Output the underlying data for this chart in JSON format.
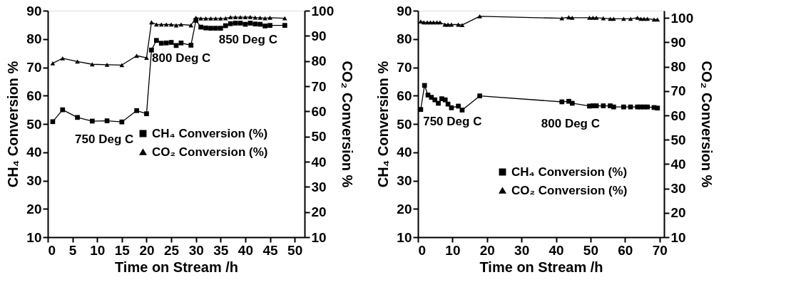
{
  "chart_data": [
    {
      "type": "line",
      "xlabel": "Time on Stream /h",
      "ylabel": "CH₄ Conversion %",
      "y2label": "CO₂ Conversion %",
      "xlim": [
        0,
        52
      ],
      "xticks": [
        0,
        5,
        10,
        15,
        20,
        25,
        30,
        35,
        40,
        45,
        50
      ],
      "ylim": [
        10,
        90
      ],
      "yticks": [
        10,
        20,
        30,
        40,
        50,
        60,
        70,
        80,
        90
      ],
      "y2lim": [
        10,
        100
      ],
      "y2ticks": [
        10,
        20,
        30,
        40,
        50,
        60,
        70,
        80,
        90,
        100
      ],
      "grid": false,
      "legend": "right",
      "line_style": "solid",
      "series": [
        {
          "name": "CH₄ Conversion (%)",
          "color": "#000000",
          "marker": "square",
          "x": [
            1,
            3,
            6,
            9,
            12,
            15,
            18,
            20,
            21,
            22,
            23,
            24,
            25,
            26,
            27,
            29,
            30,
            31,
            32,
            33,
            34,
            35,
            36,
            37,
            38,
            39,
            40,
            41,
            42,
            43,
            44,
            45,
            48
          ],
          "values": [
            50.8,
            55.0,
            52.3,
            51.0,
            51.1,
            50.7,
            54.7,
            53.6,
            76.1,
            79.5,
            78.5,
            78.6,
            78.8,
            77.7,
            78.6,
            77.8,
            86.6,
            84.2,
            83.9,
            83.8,
            83.8,
            83.8,
            84.7,
            85.4,
            85.6,
            85.6,
            85.2,
            85.6,
            85.3,
            85.2,
            84.6,
            84.8,
            84.8
          ]
        },
        {
          "name": "CO₂ Conversion (%)",
          "color": "#000000",
          "marker": "triangle",
          "axis": "y2",
          "x": [
            1,
            3,
            6,
            9,
            12,
            15,
            18,
            20,
            21,
            22,
            23,
            24,
            25,
            26,
            27,
            29,
            30,
            31,
            32,
            33,
            34,
            35,
            36,
            37,
            38,
            39,
            40,
            41,
            42,
            43,
            44,
            45,
            48
          ],
          "values": [
            79.1,
            81.1,
            79.8,
            78.7,
            78.5,
            78.4,
            82.1,
            81.3,
            95.4,
            94.5,
            94.5,
            94.5,
            94.5,
            94.2,
            94.5,
            94.2,
            97.2,
            96.9,
            96.9,
            96.9,
            96.9,
            96.9,
            97.0,
            97.4,
            97.4,
            97.4,
            97.4,
            97.5,
            97.3,
            97.2,
            97.0,
            97.2,
            97.0
          ]
        }
      ],
      "annotations": [
        "750 Deg C",
        "800 Deg C",
        "850 Deg C"
      ]
    },
    {
      "type": "line",
      "xlabel": "Time on Stream /h",
      "ylabel": "CH₄ Conversion %",
      "y2label": "CO₂ Conversion %",
      "xlim": [
        0,
        71.3
      ],
      "xticks": [
        0,
        10,
        20,
        30,
        40,
        50,
        60,
        70
      ],
      "ylim": [
        10,
        90
      ],
      "yticks": [
        10,
        20,
        30,
        40,
        50,
        60,
        70,
        80,
        90
      ],
      "y2lim": [
        10,
        103
      ],
      "y2ticks": [
        10,
        20,
        30,
        40,
        50,
        60,
        70,
        80,
        90,
        100
      ],
      "grid": false,
      "legend": "bottom right",
      "line_style": "solid",
      "series": [
        {
          "name": "CH₄ Conversion (%)",
          "color": "#000000",
          "marker": "square",
          "x": [
            0.8,
            1.9,
            2.9,
            3.9,
            4.9,
            5.9,
            6.9,
            7.9,
            8.7,
            9.7,
            11.7,
            12.8,
            17.9,
            41.7,
            43.7,
            44.7,
            49.7,
            50.7,
            51.7,
            53.7,
            55.7,
            56.7,
            59.6,
            61.6,
            63.6,
            64.6,
            65.5,
            66.5,
            68.4,
            69.4
          ],
          "values": [
            55.1,
            63.6,
            60.2,
            59.4,
            58.5,
            57.3,
            58.9,
            58.5,
            57.0,
            55.7,
            56.3,
            54.9,
            59.9,
            57.8,
            58.0,
            57.3,
            56.3,
            56.4,
            56.4,
            56.4,
            56.4,
            56.0,
            56.0,
            56.0,
            56.0,
            56.0,
            56.0,
            56.0,
            55.8,
            55.6
          ]
        },
        {
          "name": "CO₂ Conversion (%)",
          "color": "#000000",
          "marker": "triangle",
          "axis": "y2",
          "x": [
            0.8,
            1.7,
            2.7,
            3.6,
            4.5,
            5.5,
            6.4,
            7.8,
            8.7,
            9.7,
            11.7,
            12.8,
            17.9,
            41.7,
            43.7,
            44.7,
            49.7,
            50.7,
            51.7,
            53.7,
            55.7,
            56.7,
            59.6,
            61.6,
            63.6,
            64.6,
            65.5,
            66.5,
            68.4,
            69.4
          ],
          "values": [
            98.6,
            98.2,
            98.2,
            98.2,
            98.2,
            98.2,
            98.2,
            97.3,
            97.3,
            97.3,
            97.3,
            97.1,
            100.7,
            99.9,
            100.3,
            100.1,
            100.1,
            100.1,
            100.1,
            99.9,
            99.7,
            99.7,
            99.7,
            99.7,
            100.1,
            99.7,
            99.7,
            99.7,
            99.4,
            99.4
          ]
        }
      ],
      "annotations": [
        "750 Deg C",
        "800 Deg C"
      ]
    }
  ]
}
